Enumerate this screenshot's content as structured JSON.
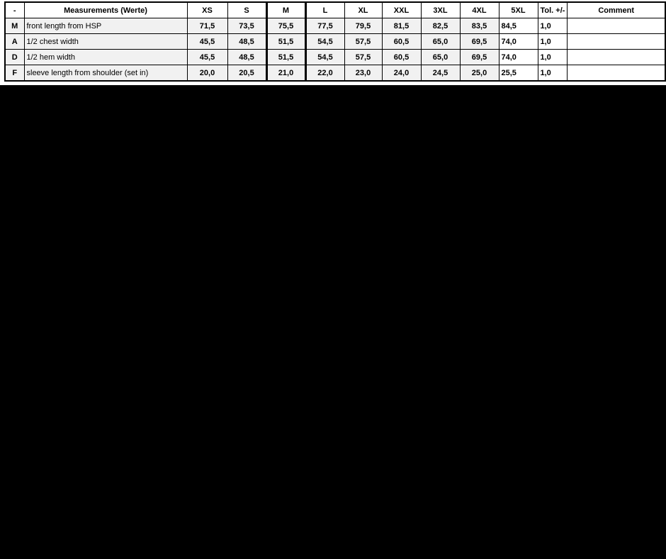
{
  "page": {
    "background_color": "#000000",
    "band_color": "#ffffff"
  },
  "table": {
    "title": "measurement-chart",
    "columns": [
      "-",
      "Measurements (Werte)",
      "XS",
      "S",
      "M",
      "L",
      "XL",
      "XXL",
      "3XL",
      "4XL",
      "5XL",
      "Tol. +/-",
      "Comment"
    ],
    "highlight_column": "M",
    "rows": [
      {
        "code": "M",
        "name": "front length from HSP",
        "values": [
          "71,5",
          "73,5",
          "75,5",
          "77,5",
          "79,5",
          "81,5",
          "82,5",
          "83,5",
          "84,5"
        ],
        "tol": "1,0",
        "comment": ""
      },
      {
        "code": "A",
        "name": "1/2 chest width",
        "values": [
          "45,5",
          "48,5",
          "51,5",
          "54,5",
          "57,5",
          "60,5",
          "65,0",
          "69,5",
          "74,0"
        ],
        "tol": "1,0",
        "comment": ""
      },
      {
        "code": "D",
        "name": "1/2 hem width",
        "values": [
          "45,5",
          "48,5",
          "51,5",
          "54,5",
          "57,5",
          "60,5",
          "65,0",
          "69,5",
          "74,0"
        ],
        "tol": "1,0",
        "comment": ""
      },
      {
        "code": "F",
        "name": "sleeve length from shoulder (set in)",
        "values": [
          "20,0",
          "20,5",
          "21,0",
          "22,0",
          "23,0",
          "24,0",
          "24,5",
          "25,0",
          "25,5"
        ],
        "tol": "1,0",
        "comment": ""
      }
    ],
    "colors": {
      "row_fill": "#f1f1f1",
      "header_fill": "#ffffff",
      "border": "#000000",
      "text": "#000000"
    }
  }
}
